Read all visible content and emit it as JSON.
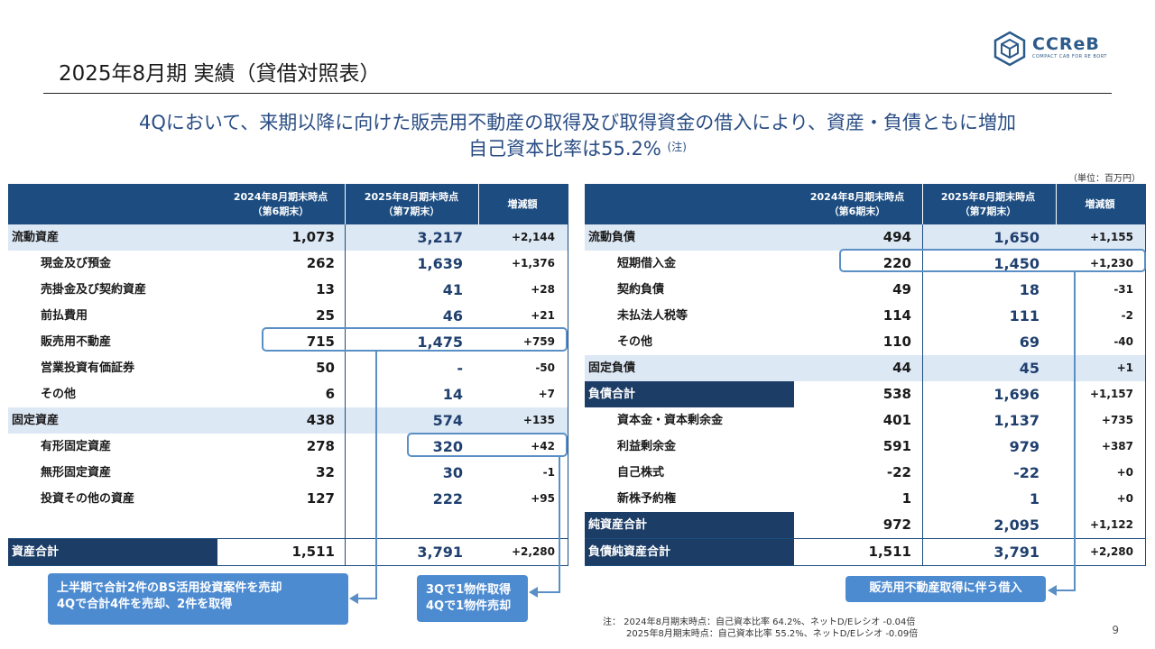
{
  "page": {
    "title": "2025年8月期 実績（貸借対照表）",
    "headline_line1": "4Qにおいて、来期以降に向けた販売用不動産の取得及び取得資金の借入により、資産・負債ともに増加",
    "headline_line2": "自己資本比率は55.2%",
    "headline_note": "(注)",
    "unit": "（単位：百万円）",
    "page_number": "9"
  },
  "logo": {
    "text": "CCReB",
    "sub": "COMPACT CAB FOR RE BORT",
    "icon": "cube-logo-icon"
  },
  "assets_table": {
    "headers": [
      "",
      "2024年8月期末時点\n（第6期末）",
      "2025年8月期末時点\n（第7期末）",
      "増減額"
    ],
    "rows": [
      {
        "label": "流動資産",
        "a": "1,073",
        "b": "3,217",
        "c": "+2,144"
      },
      {
        "label": "現金及び預金",
        "a": "262",
        "b": "1,639",
        "c": "+1,376"
      },
      {
        "label": "売掛金及び契約資産",
        "a": "13",
        "b": "41",
        "c": "+28"
      },
      {
        "label": "前払費用",
        "a": "25",
        "b": "46",
        "c": "+21"
      },
      {
        "label": "販売用不動産",
        "a": "715",
        "b": "1,475",
        "c": "+759"
      },
      {
        "label": "営業投資有価証券",
        "a": "50",
        "b": "-",
        "c": "-50"
      },
      {
        "label": "その他",
        "a": "6",
        "b": "14",
        "c": "+7"
      },
      {
        "label": "固定資産",
        "a": "438",
        "b": "574",
        "c": "+135"
      },
      {
        "label": "有形固定資産",
        "a": "278",
        "b": "320",
        "c": "+42"
      },
      {
        "label": "無形固定資産",
        "a": "32",
        "b": "30",
        "c": "-1"
      },
      {
        "label": "投資その他の資産",
        "a": "127",
        "b": "222",
        "c": "+95"
      },
      {
        "label": "",
        "a": "",
        "b": "",
        "c": ""
      },
      {
        "label": "資産合計",
        "a": "1,511",
        "b": "3,791",
        "c": "+2,280"
      }
    ]
  },
  "liabilities_table": {
    "headers": [
      "",
      "2024年8月期末時点\n（第6期末）",
      "2025年8月期末時点\n（第7期末）",
      "増減額"
    ],
    "rows": [
      {
        "label": "流動負債",
        "a": "494",
        "b": "1,650",
        "c": "+1,155"
      },
      {
        "label": "短期借入金",
        "a": "220",
        "b": "1,450",
        "c": "+1,230"
      },
      {
        "label": "契約負債",
        "a": "49",
        "b": "18",
        "c": "-31"
      },
      {
        "label": "未払法人税等",
        "a": "114",
        "b": "111",
        "c": "-2"
      },
      {
        "label": "その他",
        "a": "110",
        "b": "69",
        "c": "-40"
      },
      {
        "label": "固定負債",
        "a": "44",
        "b": "45",
        "c": "+1"
      },
      {
        "label": "負債合計",
        "a": "538",
        "b": "1,696",
        "c": "+1,157"
      },
      {
        "label": "資本金・資本剰余金",
        "a": "401",
        "b": "1,137",
        "c": "+735"
      },
      {
        "label": "利益剰余金",
        "a": "591",
        "b": "979",
        "c": "+387"
      },
      {
        "label": "自己株式",
        "a": "-22",
        "b": "-22",
        "c": "+0"
      },
      {
        "label": "新株予約権",
        "a": "1",
        "b": "1",
        "c": "+0"
      },
      {
        "label": "純資産合計",
        "a": "972",
        "b": "2,095",
        "c": "+1,122"
      },
      {
        "label": "負債純資産合計",
        "a": "1,511",
        "b": "3,791",
        "c": "+2,280"
      }
    ]
  },
  "notes": {
    "note1_line1": "上半期で合計2件のBS活用投資案件を売却",
    "note1_line2": "4Qで合計4件を売却、2件を取得",
    "note2_line1": "3Qで1物件取得",
    "note2_line2": "4Qで1物件売却",
    "note3": "販売用不動産取得に伴う借入"
  },
  "footnote": {
    "line1": "注：  2024年8月期末時点：自己資本比率 64.2%、ネットD/Eレシオ -0.04倍",
    "line2": "2025年8月期末時点：自己資本比率 55.2%、ネットD/Eレシオ -0.09倍"
  }
}
